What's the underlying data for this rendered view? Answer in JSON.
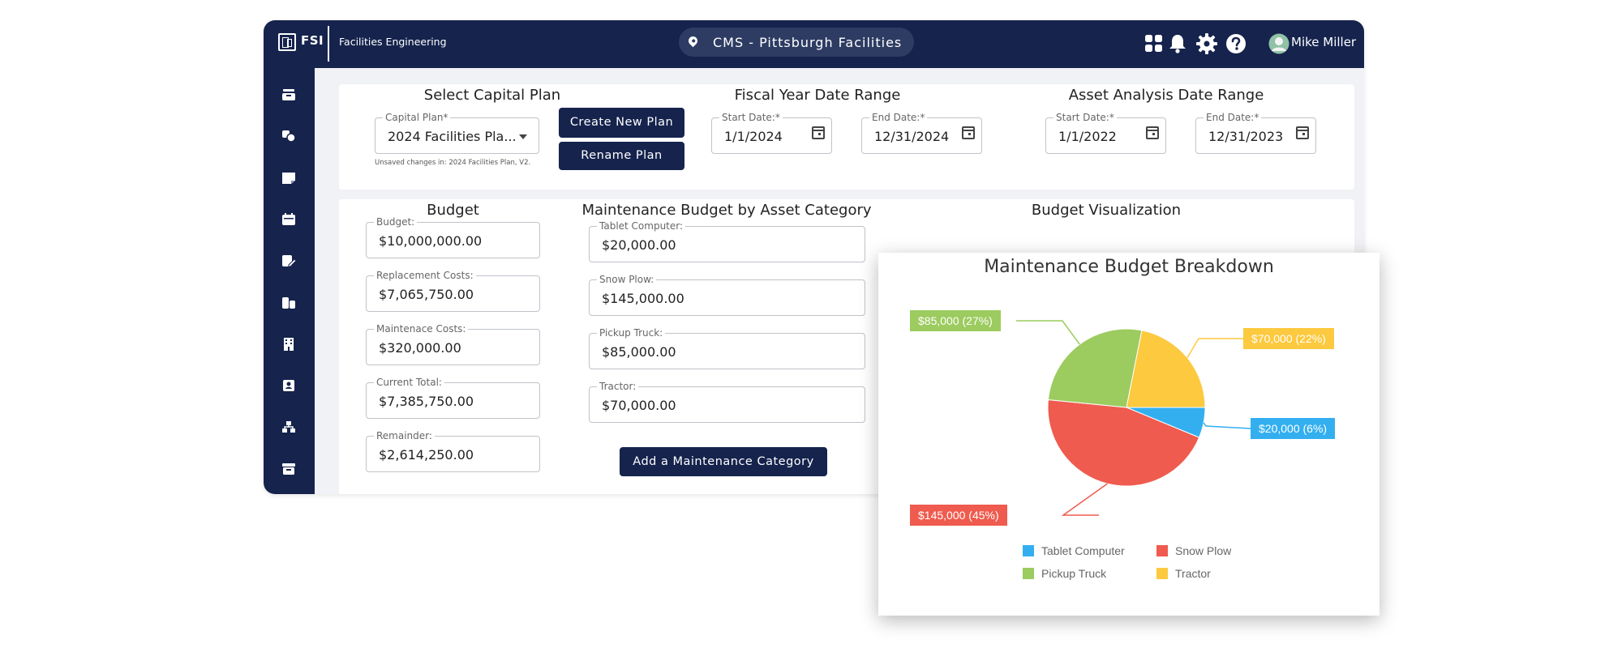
{
  "header": {
    "brand": "FSI",
    "org": "Facilities Engineering",
    "site": "CMS - Pittsburgh Facilities",
    "user_name": "Mike Miller",
    "icons": [
      "apps-grid-icon",
      "bell-icon",
      "gear-icon",
      "help-icon",
      "avatar-icon"
    ]
  },
  "sidebar": {
    "icons": [
      "inbox-icon",
      "shapes-icon",
      "note-icon",
      "calendar-icon",
      "edit-doc-icon",
      "assets-icon",
      "building-icon",
      "contact-icon",
      "hierarchy-icon",
      "archive-icon"
    ]
  },
  "capital_plan": {
    "title": "Select Capital Plan",
    "plan_label": "Capital Plan*",
    "plan_value": "2024 Facilities Pla...",
    "unsaved_note": "Unsaved changes in: 2024 Facilities Plan, V2.",
    "create_button": "Create New Plan",
    "rename_button": "Rename Plan"
  },
  "fiscal_year": {
    "title": "Fiscal Year Date Range",
    "start_label": "Start Date:*",
    "start_value": "1/1/2024",
    "end_label": "End Date:*",
    "end_value": "12/31/2024"
  },
  "asset_analysis": {
    "title": "Asset Analysis Date Range",
    "start_label": "Start Date:*",
    "start_value": "1/1/2022",
    "end_label": "End Date:*",
    "end_value": "12/31/2023"
  },
  "budget": {
    "title": "Budget",
    "fields": [
      {
        "label": "Budget:",
        "value": "$10,000,000.00"
      },
      {
        "label": "Replacement Costs:",
        "value": "$7,065,750.00"
      },
      {
        "label": "Maintenace Costs:",
        "value": "$320,000.00"
      },
      {
        "label": "Current Total:",
        "value": "$7,385,750.00"
      },
      {
        "label": "Remainder:",
        "value": "$2,614,250.00"
      }
    ]
  },
  "maintenance": {
    "title": "Maintenance Budget by Asset Category",
    "fields": [
      {
        "label": "Tablet Computer:",
        "value": "$20,000.00"
      },
      {
        "label": "Snow Plow:",
        "value": "$145,000.00"
      },
      {
        "label": "Pickup Truck:",
        "value": "$85,000.00"
      },
      {
        "label": "Tractor:",
        "value": "$70,000.00"
      }
    ],
    "add_button": "Add a Maintenance Category"
  },
  "visualization": {
    "title": "Budget Visualization"
  },
  "chart_data": {
    "type": "pie",
    "title": "Maintenance Budget Breakdown",
    "categories": [
      "Tablet Computer",
      "Snow Plow",
      "Pickup Truck",
      "Tractor"
    ],
    "values": [
      20000,
      145000,
      85000,
      70000
    ],
    "labels": [
      "$20,000 (6%)",
      "$145,000 (45%)",
      "$85,000 (27%)",
      "$70,000 (22%)"
    ],
    "colors": [
      "#33aff0",
      "#ef5b4e",
      "#9ccb5f",
      "#fcc93f"
    ],
    "legend": "bottom"
  }
}
